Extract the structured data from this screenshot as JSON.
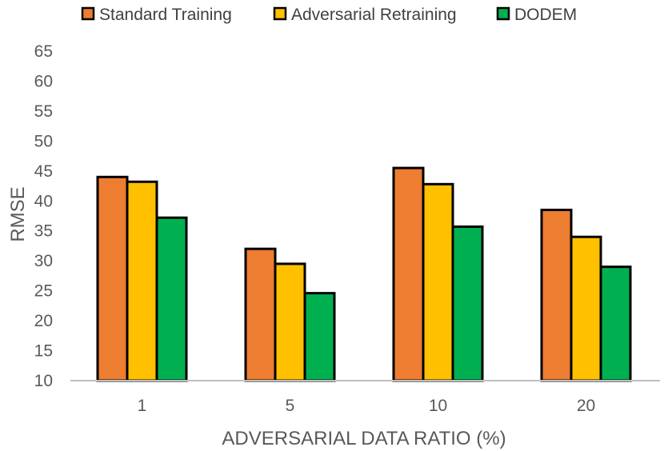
{
  "chart_data": {
    "type": "bar",
    "title": "",
    "xlabel": "ADVERSARIAL DATA RATIO (%)",
    "ylabel": "RMSE",
    "ylim": [
      10,
      65
    ],
    "yticks": [
      10,
      15,
      20,
      25,
      30,
      35,
      40,
      45,
      50,
      55,
      60,
      65
    ],
    "grid": false,
    "legend_position": "top",
    "categories": [
      "1",
      "5",
      "10",
      "20"
    ],
    "series": [
      {
        "name": "Standard Training",
        "color": "#ED7D31",
        "values": [
          44,
          32,
          45.5,
          38.5
        ]
      },
      {
        "name": "Adversarial Retraining",
        "color": "#FFC000",
        "values": [
          43.2,
          29.5,
          42.8,
          34
        ]
      },
      {
        "name": "DODEM",
        "color": "#00B050",
        "values": [
          37.2,
          24.6,
          35.7,
          29
        ]
      }
    ]
  }
}
